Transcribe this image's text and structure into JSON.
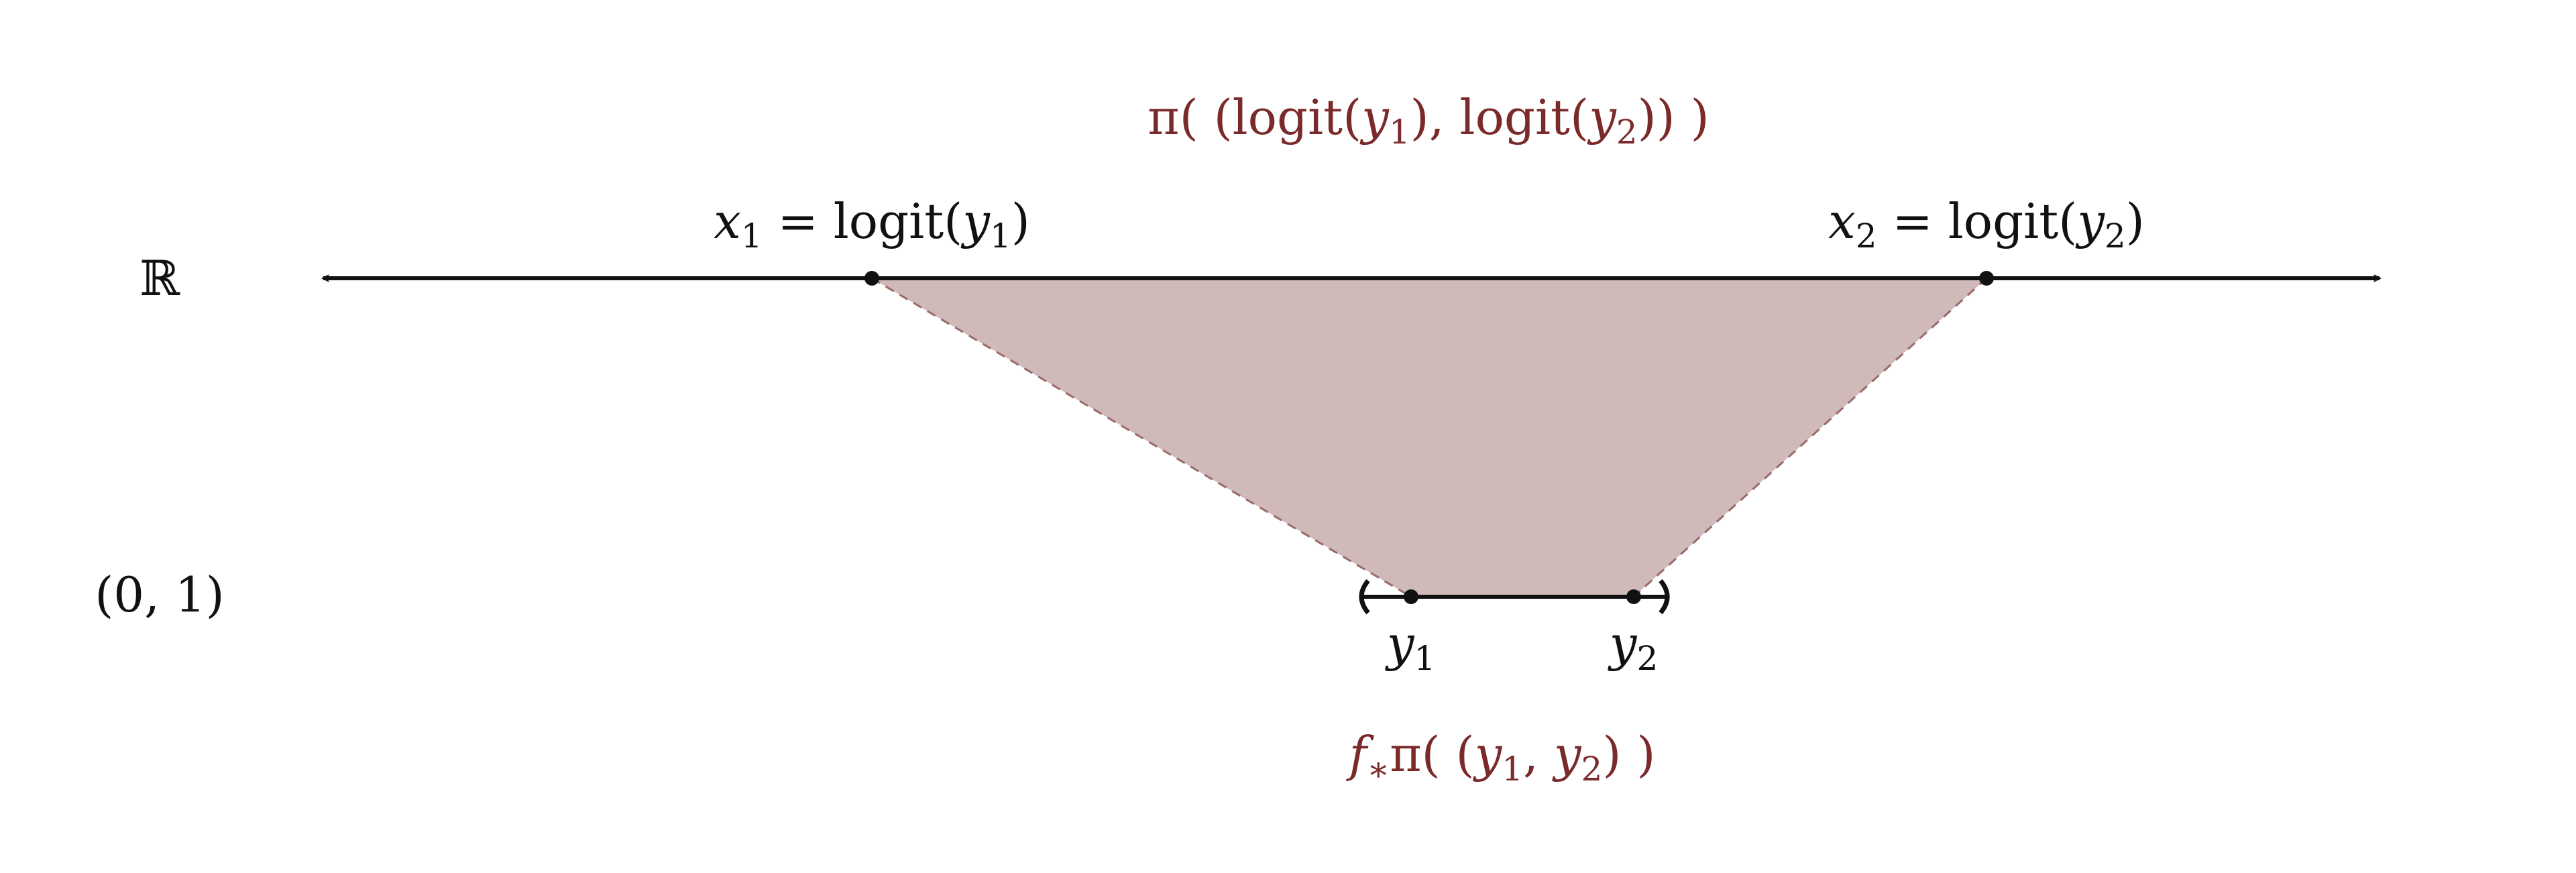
{
  "colors": {
    "accent": "#7a2a2a",
    "fill": "#cfb9b9",
    "line": "#111111",
    "dash": "#9b6a6a"
  },
  "labels": {
    "real_line": "ℝ",
    "unit_interval": "(0, 1)",
    "x1": {
      "var": "x",
      "sub": "1",
      "rest": " = logit(",
      "arg_var": "y",
      "arg_sub": "1",
      "close": ")"
    },
    "x2": {
      "var": "x",
      "sub": "2",
      "rest": " = logit(",
      "arg_var": "y",
      "arg_sub": "2",
      "close": ")"
    },
    "y1": {
      "var": "y",
      "sub": "1"
    },
    "y2": {
      "var": "y",
      "sub": "2"
    },
    "top_measure": {
      "open": "π( (logit(",
      "a_var": "y",
      "a_sub": "1",
      "mid": "), logit(",
      "b_var": "y",
      "b_sub": "2",
      "close": ")) )"
    },
    "bottom_measure": {
      "f": "f",
      "star": "∗",
      "open": "π( (",
      "a_var": "y",
      "a_sub": "1",
      "mid": ", ",
      "b_var": "y",
      "b_sub": "2",
      "close": ") )"
    }
  }
}
